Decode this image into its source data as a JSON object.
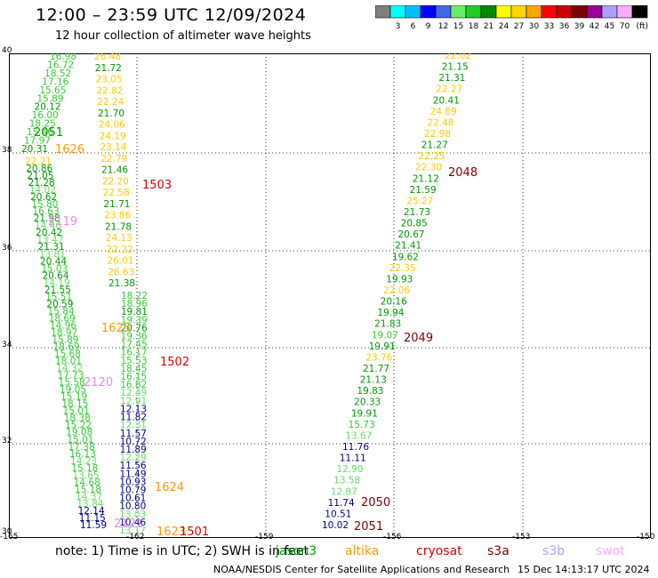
{
  "header": {
    "title": "12:00 – 23:59 UTC 12/09/2024",
    "subtitle": "12 hour collection of altimeter wave heights"
  },
  "scale": {
    "unit": "(ft)",
    "bins": [
      {
        "label": "",
        "color": "#7f7f7f"
      },
      {
        "label": "3",
        "color": "#00ffff"
      },
      {
        "label": "6",
        "color": "#00bfff"
      },
      {
        "label": "9",
        "color": "#0000ff"
      },
      {
        "label": "12",
        "color": "#4169e1"
      },
      {
        "label": "15",
        "color": "#66ee66"
      },
      {
        "label": "18",
        "color": "#22cc22"
      },
      {
        "label": "21",
        "color": "#008800"
      },
      {
        "label": "24",
        "color": "#ffff00"
      },
      {
        "label": "27",
        "color": "#ffd700"
      },
      {
        "label": "30",
        "color": "#ffa500"
      },
      {
        "label": "33",
        "color": "#ff0000"
      },
      {
        "label": "36",
        "color": "#cc0000"
      },
      {
        "label": "39",
        "color": "#800000"
      },
      {
        "label": "42",
        "color": "#990099"
      },
      {
        "label": "45",
        "color": "#b0a0ff"
      },
      {
        "label": "70",
        "color": "#ffaaff"
      },
      {
        "label": "",
        "color": "#000000"
      }
    ]
  },
  "axes": {
    "lon_ticks": [
      "-165",
      "-162",
      "-159",
      "-156",
      "-153",
      "-150"
    ],
    "lat_ticks": [
      "40",
      "38",
      "36",
      "34",
      "32",
      "30"
    ]
  },
  "colors": {
    "c15": "#33cc33",
    "c18": "#009900",
    "c21": "#ffcc00",
    "c12": "#00008b",
    "c13": "#66dd66",
    "pink": "#ee88ee",
    "orange": "#ff9900",
    "red": "#dd0000",
    "dark": "#800000"
  },
  "tracks": {
    "t1": [
      "16.98",
      "16.72",
      "18.52",
      "17.16",
      "15.65",
      "15.89",
      "20.12",
      "16.00",
      "18.25",
      "15.46",
      "17.97",
      "20.31"
    ],
    "t2": [
      "26.48",
      "21.72",
      "23.05",
      "22.82",
      "22.24",
      "21.70",
      "24.06",
      "24.19",
      "23.14",
      "22.79",
      "21.46",
      "22.20",
      "22.58",
      "21.71",
      "23.86",
      "21.78",
      "24.13",
      "22.22",
      "26.01",
      "26.63",
      "21.38"
    ],
    "t3": [
      "22.21",
      "20.86",
      "21.05",
      "21.28",
      "14.02",
      "20.62",
      "15.80",
      "16.63",
      "21.98",
      "14.46",
      "20.42",
      "13.47",
      "21.31",
      "13.81",
      "20.44",
      "15.03",
      "20.64",
      "14.19",
      "21.55",
      "15.51",
      "20.59",
      "15.84",
      "18.69",
      "14.96",
      "18.97",
      "15.89",
      "18.69",
      "15.68",
      "18.01",
      "14.32",
      "17.73",
      "15.58",
      "19.05",
      "15.19",
      "18.15",
      "15.01",
      "18.38",
      "15.22",
      "19.08",
      "15.01",
      "17.38",
      "16.13",
      "14.23",
      "15.18",
      "13.65",
      "14.68",
      "15.18",
      "14.37",
      "13.84",
      "12.14",
      "11.15",
      "11.59"
    ],
    "t4": [
      "18.22",
      "18.96",
      "19.81",
      "19.39",
      "20.76",
      "19.36",
      "17.45",
      "16.17",
      "15.53",
      "18.45",
      "16.15",
      "16.82",
      "12.49",
      "12.91",
      "12.13",
      "11.82",
      "12.31",
      "11.57",
      "10.72",
      "11.89",
      "12.29",
      "11.56",
      "11.49",
      "10.93",
      "10.79",
      "10.61",
      "10.80",
      "13.03",
      "10.46",
      "13.17"
    ],
    "t5": [
      "22.02",
      "21.15",
      "21.31",
      "22.27",
      "20.41",
      "24.89",
      "22.48",
      "22.98",
      "21.27",
      "22.25",
      "22.30",
      "21.12",
      "21.59",
      "25.27",
      "21.73",
      "20.85",
      "20.67",
      "21.41",
      "19.62",
      "22.35",
      "19.93",
      "22.06",
      "20.16",
      "19.94",
      "21.83",
      "19.07",
      "19.91",
      "23.76",
      "21.77",
      "21.13",
      "19.83",
      "20.33",
      "19.91",
      "15.73",
      "13.67",
      "11.76",
      "11.11",
      "12.90",
      "13.58",
      "12.87",
      "11.74",
      "10.51",
      "10.02"
    ]
  },
  "pass_labels": {
    "p2051a": "2051",
    "p1626": "1626",
    "p1503": "1503",
    "p2119": "2119",
    "p2048": "2048",
    "p1625": "1625",
    "p1502": "1502",
    "p2049": "2049",
    "p2120": "2120",
    "p1624": "1624",
    "p2050": "2050",
    "p2051b": "2051",
    "p1623": "1623",
    "p1501": "1501",
    "p2121": "2121"
  },
  "footer": {
    "note": "note:  1) Time is in UTC;  2) SWH is in feet",
    "satellites": [
      {
        "name": "jason3",
        "color": "#009900"
      },
      {
        "name": "altika",
        "color": "#ff9900"
      },
      {
        "name": "cryosat",
        "color": "#dd0000"
      },
      {
        "name": "s3a",
        "color": "#800000"
      },
      {
        "name": "s3b",
        "color": "#b0a0ff"
      },
      {
        "name": "swot",
        "color": "#ffaaff"
      }
    ],
    "credit": "NOAA/NESDIS Center for Satellite Applications and Research",
    "timestamp": "15 Dec 14:13:17 UTC 2024"
  }
}
